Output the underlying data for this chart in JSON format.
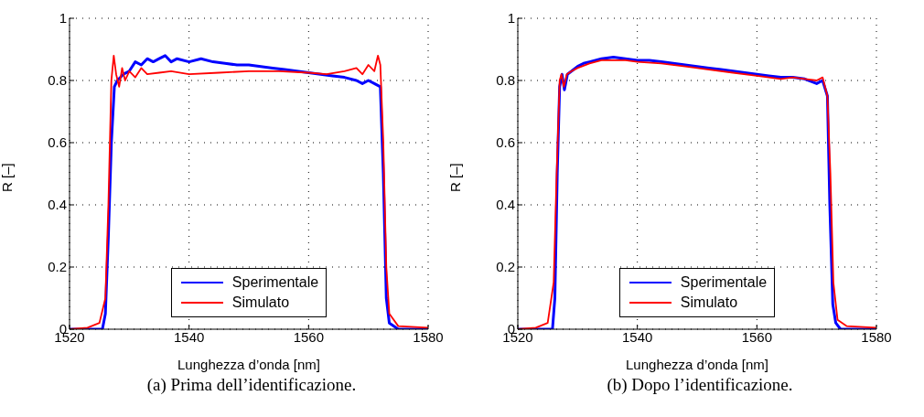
{
  "chart_data": [
    {
      "type": "line",
      "title": "(a) Prima dell’identificazione.",
      "xlabel": "Lunghezza d’onda [nm]",
      "ylabel": "R [–]",
      "xlim": [
        1520,
        1580
      ],
      "xticks": [
        1520,
        1540,
        1560,
        1580
      ],
      "ylim": [
        0,
        1
      ],
      "yticks": [
        0,
        0.2,
        0.4,
        0.6,
        0.8,
        1
      ],
      "grid": true,
      "legend": "bottom",
      "line_style": "solid",
      "marker": "none",
      "series": [
        {
          "name": "Sperimentale",
          "color": "#0000ff",
          "x": [
            1520,
            1525.5,
            1526,
            1526.5,
            1527,
            1527.5,
            1528,
            1529,
            1530,
            1531,
            1532,
            1533,
            1534,
            1535,
            1536,
            1537,
            1538,
            1540,
            1542,
            1544,
            1546,
            1548,
            1550,
            1552,
            1554,
            1556,
            1558,
            1560,
            1562,
            1564,
            1566,
            1568,
            1569,
            1570,
            1571,
            1572,
            1572.5,
            1573,
            1573.5,
            1575,
            1580
          ],
          "values": [
            0,
            0,
            0.05,
            0.3,
            0.6,
            0.78,
            0.8,
            0.82,
            0.83,
            0.86,
            0.85,
            0.87,
            0.86,
            0.87,
            0.88,
            0.86,
            0.87,
            0.86,
            0.87,
            0.86,
            0.855,
            0.85,
            0.85,
            0.845,
            0.84,
            0.835,
            0.83,
            0.825,
            0.82,
            0.815,
            0.81,
            0.8,
            0.79,
            0.8,
            0.79,
            0.78,
            0.5,
            0.1,
            0.02,
            0,
            0
          ]
        },
        {
          "name": "Simulato",
          "color": "#ff0000",
          "x": [
            1520,
            1523,
            1525,
            1526,
            1526.5,
            1527,
            1527.4,
            1527.8,
            1528.3,
            1528.8,
            1529.3,
            1530,
            1531,
            1532,
            1533,
            1535,
            1537,
            1540,
            1545,
            1550,
            1555,
            1560,
            1563,
            1566,
            1568,
            1569,
            1570,
            1571,
            1571.6,
            1572,
            1572.5,
            1573,
            1573.5,
            1575,
            1580
          ],
          "values": [
            0,
            0.005,
            0.02,
            0.1,
            0.4,
            0.8,
            0.88,
            0.82,
            0.78,
            0.84,
            0.8,
            0.83,
            0.81,
            0.84,
            0.82,
            0.825,
            0.83,
            0.82,
            0.825,
            0.83,
            0.83,
            0.825,
            0.82,
            0.83,
            0.84,
            0.82,
            0.85,
            0.83,
            0.88,
            0.85,
            0.6,
            0.2,
            0.05,
            0.01,
            0.005
          ]
        }
      ]
    },
    {
      "type": "line",
      "title": "(b) Dopo l’identificazione.",
      "xlabel": "Lunghezza d’onda [nm]",
      "ylabel": "R [–]",
      "xlim": [
        1520,
        1580
      ],
      "xticks": [
        1520,
        1540,
        1560,
        1580
      ],
      "ylim": [
        0,
        1
      ],
      "yticks": [
        0,
        0.2,
        0.4,
        0.6,
        0.8,
        1
      ],
      "grid": true,
      "legend": "bottom",
      "line_style": "solid",
      "marker": "none",
      "series": [
        {
          "name": "Sperimentale",
          "color": "#0000ff",
          "x": [
            1520,
            1525.8,
            1526.2,
            1526.6,
            1527,
            1527.4,
            1527.8,
            1528.3,
            1529,
            1530,
            1531,
            1532,
            1534,
            1536,
            1538,
            1540,
            1542,
            1544,
            1546,
            1548,
            1550,
            1552,
            1554,
            1556,
            1558,
            1560,
            1562,
            1564,
            1566,
            1568,
            1570,
            1571,
            1571.8,
            1572.2,
            1572.7,
            1573.2,
            1574,
            1580
          ],
          "values": [
            0,
            0,
            0.1,
            0.5,
            0.78,
            0.82,
            0.77,
            0.82,
            0.83,
            0.845,
            0.855,
            0.86,
            0.87,
            0.875,
            0.87,
            0.865,
            0.865,
            0.86,
            0.855,
            0.85,
            0.845,
            0.84,
            0.835,
            0.83,
            0.825,
            0.82,
            0.815,
            0.81,
            0.81,
            0.805,
            0.79,
            0.8,
            0.75,
            0.4,
            0.08,
            0.02,
            0,
            0
          ]
        },
        {
          "name": "Simulato",
          "color": "#ff0000",
          "x": [
            1520,
            1523,
            1525,
            1526,
            1526.5,
            1527,
            1527.3,
            1527.7,
            1528.2,
            1529,
            1530,
            1532,
            1534,
            1536,
            1538,
            1540,
            1544,
            1548,
            1552,
            1556,
            1560,
            1562,
            1564,
            1566,
            1568,
            1570,
            1571,
            1571.8,
            1572.3,
            1572.8,
            1573.5,
            1575,
            1580
          ],
          "values": [
            0,
            0.005,
            0.02,
            0.15,
            0.5,
            0.8,
            0.82,
            0.78,
            0.82,
            0.83,
            0.84,
            0.855,
            0.865,
            0.865,
            0.865,
            0.86,
            0.855,
            0.845,
            0.835,
            0.825,
            0.815,
            0.81,
            0.805,
            0.81,
            0.805,
            0.8,
            0.81,
            0.75,
            0.5,
            0.15,
            0.03,
            0.01,
            0.005
          ]
        }
      ]
    }
  ]
}
